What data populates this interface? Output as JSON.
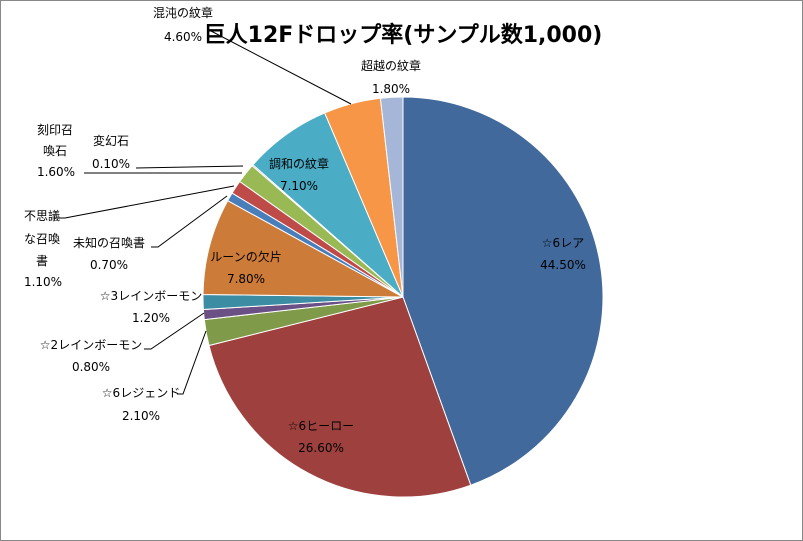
{
  "chart_data": {
    "type": "pie",
    "title": "巨人12Fドロップ率(サンプル数1,000)",
    "start": "top",
    "direction": "clockwise",
    "legend": "none",
    "slices": [
      {
        "label": "☆6レア",
        "value": 44.5,
        "display": "44.50%",
        "color": "#41699C"
      },
      {
        "label": "☆6ヒーロー",
        "value": 26.6,
        "display": "26.60%",
        "color": "#9E413E"
      },
      {
        "label": "☆6レジェンド",
        "value": 2.1,
        "display": "2.10%",
        "color": "#7F9A48"
      },
      {
        "label": "☆2レインボーモン",
        "value": 0.8,
        "display": "0.80%",
        "color": "#6A5084"
      },
      {
        "label": "☆3レインボーモン",
        "value": 1.2,
        "display": "1.20%",
        "color": "#3C8DA3"
      },
      {
        "label": "ルーンの欠片",
        "value": 7.8,
        "display": "7.80%",
        "color": "#CC7B38"
      },
      {
        "label": "未知の召喚書",
        "value": 0.7,
        "display": "0.70%",
        "color": "#4A7EBB"
      },
      {
        "label": "不思議な召喚書",
        "value": 1.1,
        "display": "1.10%",
        "color": "#BE4B48"
      },
      {
        "label": "刻印召喚石",
        "value": 1.6,
        "display": "1.60%",
        "color": "#98B954"
      },
      {
        "label": "変幻石",
        "value": 0.1,
        "display": "0.10%",
        "color": "#7D60A0"
      },
      {
        "label": "調和の紋章",
        "value": 7.1,
        "display": "7.10%",
        "color": "#4BACC6"
      },
      {
        "label": "混沌の紋章",
        "value": 4.6,
        "display": "4.60%",
        "color": "#F79646"
      },
      {
        "label": "超越の紋章",
        "value": 1.8,
        "display": "1.80%",
        "color": "#A5B6D8"
      }
    ]
  }
}
